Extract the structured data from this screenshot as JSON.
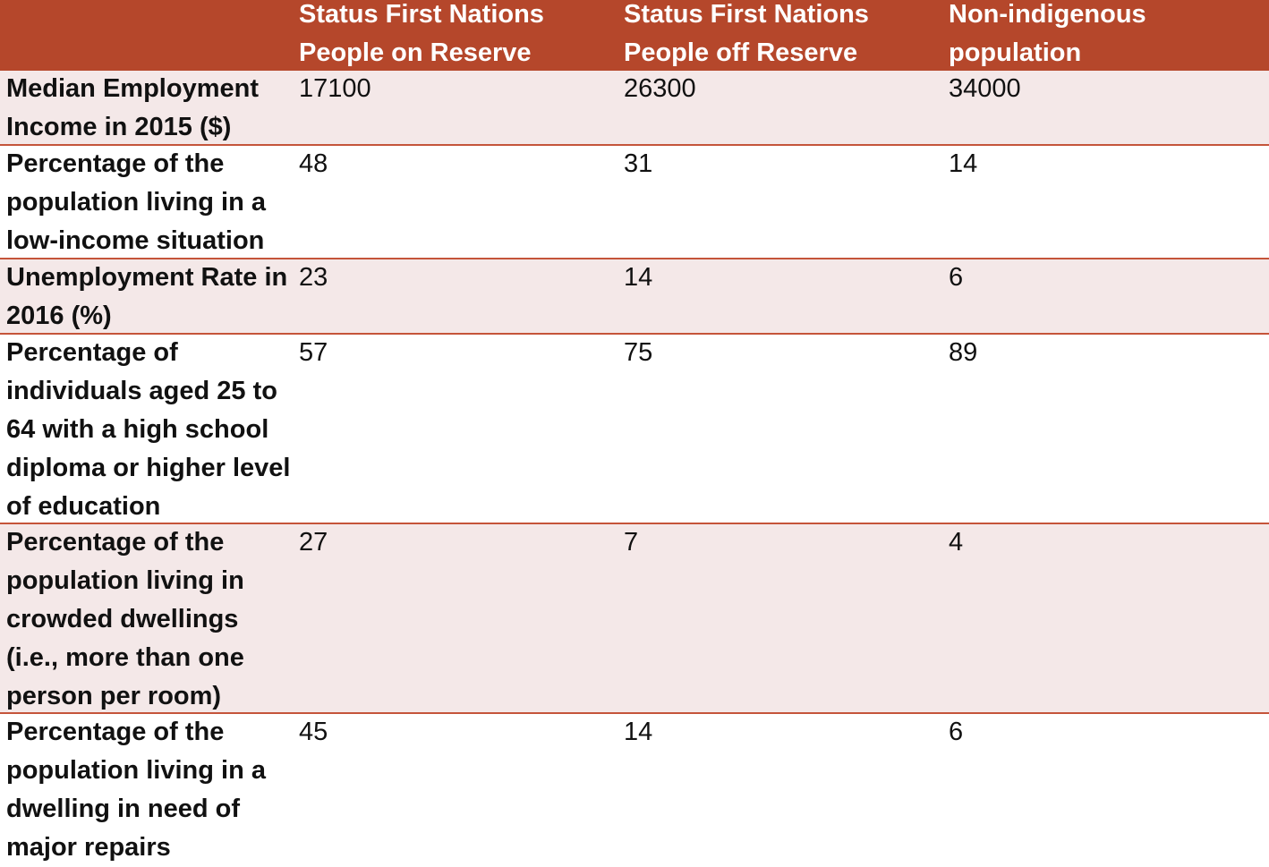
{
  "table": {
    "columns": [
      "",
      "Status First Nations People on Reserve",
      "Status First Nations People off Reserve",
      "Non-indigenous population"
    ],
    "rows": [
      {
        "label": "Median Employment Income in 2015 ($)",
        "values": [
          "17100",
          "26300",
          "34000"
        ]
      },
      {
        "label": "Percentage of the population living in a low-income situation",
        "values": [
          "48",
          "31",
          "14"
        ]
      },
      {
        "label": "Unemployment Rate in 2016 (%)",
        "values": [
          "23",
          "14",
          "6"
        ]
      },
      {
        "label": "Percentage of individuals aged 25 to 64 with a high school diploma or higher level of education",
        "values": [
          "57",
          "75",
          "89"
        ]
      },
      {
        "label": "Percentage of the population living in crowded dwellings (i.e., more than one person per room)",
        "values": [
          "27",
          "7",
          "4"
        ]
      },
      {
        "label": "Percentage of the population living in a dwelling in need of major repairs",
        "values": [
          "45",
          "14",
          "6"
        ]
      }
    ]
  },
  "colors": {
    "header_background": "#b5472b",
    "header_text": "#ffffff",
    "shaded_row": "#f4e8e8",
    "row_divider": "#c5543a"
  }
}
